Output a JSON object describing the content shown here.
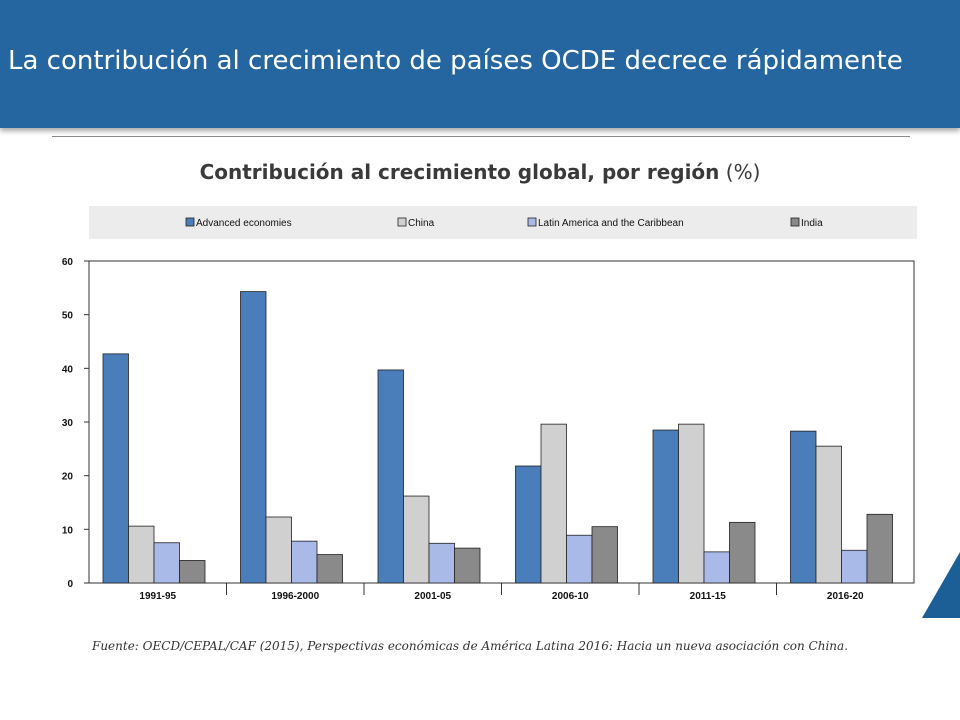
{
  "slide": {
    "title": "La contribución al crecimiento de países OCDE decrece rápidamente",
    "subtitle_main": "Contribución al crecimiento global, por región",
    "subtitle_unit": "(%)",
    "source": "Fuente: OECD/CEPAL/CAF (2015), Perspectivas económicas de América Latina 2016: Hacia un nueva asociación con China.",
    "colors": {
      "banner": "#2566a1",
      "corner_triangle": "#1c5f96"
    }
  },
  "chart_data": {
    "type": "bar",
    "categories": [
      "1991-95",
      "1996-2000",
      "2001-05",
      "2006-10",
      "2011-15",
      "2016-20"
    ],
    "series": [
      {
        "name": "Advanced economies",
        "color": "#4a7ebb",
        "values": [
          42.7,
          54.3,
          39.7,
          21.8,
          28.5,
          28.3
        ]
      },
      {
        "name": "China",
        "color": "#d0d0d0",
        "values": [
          10.6,
          12.3,
          16.2,
          29.6,
          29.6,
          25.5
        ]
      },
      {
        "name": "Latin America and the Caribbean",
        "color": "#a9b9e8",
        "values": [
          7.5,
          7.8,
          7.4,
          8.9,
          5.8,
          6.1
        ]
      },
      {
        "name": "India",
        "color": "#8a8a8a",
        "values": [
          4.2,
          5.3,
          6.5,
          10.5,
          11.3,
          12.8
        ]
      }
    ],
    "yticks": [
      0,
      10,
      20,
      30,
      40,
      50,
      60
    ],
    "ylim": [
      0,
      60
    ],
    "grid": false,
    "legend_position": "top"
  }
}
